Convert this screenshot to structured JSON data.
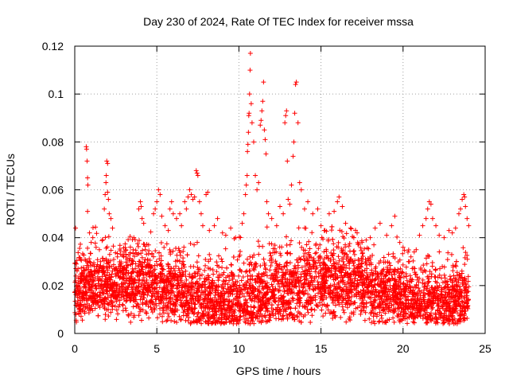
{
  "chart_data": {
    "type": "scatter",
    "title": "Day 230 of 2024, Rate Of TEC Index for receiver mssa",
    "xlabel": "GPS time / hours",
    "ylabel": "ROTI / TECUs",
    "xlim": [
      0,
      25
    ],
    "ylim": [
      0,
      0.12
    ],
    "xticks": [
      0,
      5,
      10,
      15,
      20,
      25
    ],
    "xtick_labels": [
      "0",
      "5",
      "10",
      "15",
      "20",
      "25"
    ],
    "yticks": [
      0,
      0.02,
      0.04,
      0.06,
      0.08,
      0.1,
      0.12
    ],
    "ytick_labels": [
      "0",
      "0.02",
      "0.04",
      "0.06",
      "0.08",
      "0.1",
      "0.12"
    ],
    "grid": true,
    "marker": "+",
    "marker_color": "#ff0000",
    "series": [
      {
        "name": "ROTI",
        "points": [
          [
            0.05,
            0.044
          ],
          [
            0.1,
            0.029
          ],
          [
            0.2,
            0.027
          ],
          [
            0.35,
            0.031
          ],
          [
            0.5,
            0.025
          ],
          [
            0.7,
            0.078
          ],
          [
            0.72,
            0.077
          ],
          [
            0.75,
            0.072
          ],
          [
            0.78,
            0.065
          ],
          [
            0.8,
            0.062
          ],
          [
            0.78,
            0.051
          ],
          [
            0.9,
            0.042
          ],
          [
            1.0,
            0.038
          ],
          [
            1.1,
            0.04
          ],
          [
            1.3,
            0.036
          ],
          [
            1.5,
            0.035
          ],
          [
            1.8,
            0.052
          ],
          [
            1.85,
            0.058
          ],
          [
            1.9,
            0.063
          ],
          [
            1.92,
            0.066
          ],
          [
            1.95,
            0.072
          ],
          [
            2.0,
            0.071
          ],
          [
            2.0,
            0.059
          ],
          [
            2.05,
            0.056
          ],
          [
            2.1,
            0.05
          ],
          [
            2.2,
            0.048
          ],
          [
            2.3,
            0.044
          ],
          [
            2.6,
            0.032
          ],
          [
            2.8,
            0.033
          ],
          [
            3.0,
            0.034
          ],
          [
            3.2,
            0.031
          ],
          [
            3.6,
            0.04
          ],
          [
            3.8,
            0.033
          ],
          [
            3.9,
            0.052
          ],
          [
            4.0,
            0.055
          ],
          [
            4.05,
            0.053
          ],
          [
            4.1,
            0.048
          ],
          [
            4.2,
            0.046
          ],
          [
            4.3,
            0.035
          ],
          [
            4.5,
            0.037
          ],
          [
            4.8,
            0.05
          ],
          [
            4.9,
            0.052
          ],
          [
            5.0,
            0.055
          ],
          [
            5.1,
            0.06
          ],
          [
            5.2,
            0.058
          ],
          [
            5.3,
            0.049
          ],
          [
            5.5,
            0.045
          ],
          [
            5.7,
            0.043
          ],
          [
            5.8,
            0.052
          ],
          [
            5.9,
            0.055
          ],
          [
            6.0,
            0.05
          ],
          [
            6.2,
            0.048
          ],
          [
            6.4,
            0.05
          ],
          [
            6.5,
            0.045
          ],
          [
            6.7,
            0.055
          ],
          [
            6.8,
            0.052
          ],
          [
            6.9,
            0.057
          ],
          [
            7.0,
            0.06
          ],
          [
            7.1,
            0.058
          ],
          [
            7.2,
            0.056
          ],
          [
            7.3,
            0.057
          ],
          [
            7.4,
            0.068
          ],
          [
            7.45,
            0.067
          ],
          [
            7.5,
            0.066
          ],
          [
            7.6,
            0.055
          ],
          [
            7.7,
            0.05
          ],
          [
            7.8,
            0.045
          ],
          [
            8.0,
            0.058
          ],
          [
            8.1,
            0.059
          ],
          [
            8.2,
            0.043
          ],
          [
            8.5,
            0.045
          ],
          [
            8.7,
            0.048
          ],
          [
            9.0,
            0.042
          ],
          [
            9.2,
            0.041
          ],
          [
            9.5,
            0.044
          ],
          [
            9.8,
            0.04
          ],
          [
            10.2,
            0.046
          ],
          [
            10.3,
            0.05
          ],
          [
            10.4,
            0.058
          ],
          [
            10.45,
            0.062
          ],
          [
            10.5,
            0.066
          ],
          [
            10.52,
            0.076
          ],
          [
            10.55,
            0.079
          ],
          [
            10.58,
            0.084
          ],
          [
            10.6,
            0.091
          ],
          [
            10.62,
            0.092
          ],
          [
            10.65,
            0.1
          ],
          [
            10.68,
            0.11
          ],
          [
            10.7,
            0.117
          ],
          [
            10.75,
            0.096
          ],
          [
            10.8,
            0.088
          ],
          [
            10.9,
            0.08
          ],
          [
            11.0,
            0.066
          ],
          [
            11.1,
            0.06
          ],
          [
            11.2,
            0.063
          ],
          [
            11.3,
            0.087
          ],
          [
            11.35,
            0.089
          ],
          [
            11.4,
            0.093
          ],
          [
            11.45,
            0.097
          ],
          [
            11.5,
            0.105
          ],
          [
            11.55,
            0.085
          ],
          [
            11.6,
            0.081
          ],
          [
            11.65,
            0.075
          ],
          [
            11.7,
            0.055
          ],
          [
            11.8,
            0.05
          ],
          [
            12.0,
            0.048
          ],
          [
            12.3,
            0.045
          ],
          [
            12.5,
            0.053
          ],
          [
            12.7,
            0.05
          ],
          [
            12.8,
            0.088
          ],
          [
            12.85,
            0.091
          ],
          [
            12.9,
            0.093
          ],
          [
            12.95,
            0.072
          ],
          [
            13.0,
            0.056
          ],
          [
            13.1,
            0.054
          ],
          [
            13.2,
            0.062
          ],
          [
            13.3,
            0.074
          ],
          [
            13.35,
            0.08
          ],
          [
            13.4,
            0.092
          ],
          [
            13.45,
            0.104
          ],
          [
            13.5,
            0.105
          ],
          [
            13.6,
            0.088
          ],
          [
            13.7,
            0.063
          ],
          [
            13.8,
            0.06
          ],
          [
            14.0,
            0.052
          ],
          [
            14.2,
            0.055
          ],
          [
            14.5,
            0.05
          ],
          [
            14.8,
            0.052
          ],
          [
            15.0,
            0.045
          ],
          [
            15.2,
            0.043
          ],
          [
            15.5,
            0.05
          ],
          [
            15.8,
            0.051
          ],
          [
            16.0,
            0.055
          ],
          [
            16.1,
            0.057
          ],
          [
            16.3,
            0.053
          ],
          [
            16.5,
            0.046
          ],
          [
            16.8,
            0.044
          ],
          [
            17.0,
            0.04
          ],
          [
            17.2,
            0.042
          ],
          [
            17.5,
            0.038
          ],
          [
            18.0,
            0.04
          ],
          [
            18.3,
            0.044
          ],
          [
            18.6,
            0.046
          ],
          [
            19.0,
            0.041
          ],
          [
            19.3,
            0.045
          ],
          [
            19.5,
            0.049
          ],
          [
            19.8,
            0.038
          ],
          [
            20.0,
            0.036
          ],
          [
            20.3,
            0.034
          ],
          [
            20.8,
            0.035
          ],
          [
            21.0,
            0.041
          ],
          [
            21.2,
            0.045
          ],
          [
            21.4,
            0.048
          ],
          [
            21.5,
            0.052
          ],
          [
            21.6,
            0.055
          ],
          [
            21.7,
            0.054
          ],
          [
            21.8,
            0.048
          ],
          [
            22.0,
            0.045
          ],
          [
            22.2,
            0.041
          ],
          [
            22.5,
            0.04
          ],
          [
            22.8,
            0.043
          ],
          [
            23.0,
            0.042
          ],
          [
            23.2,
            0.044
          ],
          [
            23.4,
            0.05
          ],
          [
            23.5,
            0.052
          ],
          [
            23.6,
            0.056
          ],
          [
            23.7,
            0.058
          ],
          [
            23.75,
            0.057
          ],
          [
            23.8,
            0.053
          ],
          [
            23.9,
            0.048
          ],
          [
            24.0,
            0.045
          ]
        ]
      }
    ]
  }
}
